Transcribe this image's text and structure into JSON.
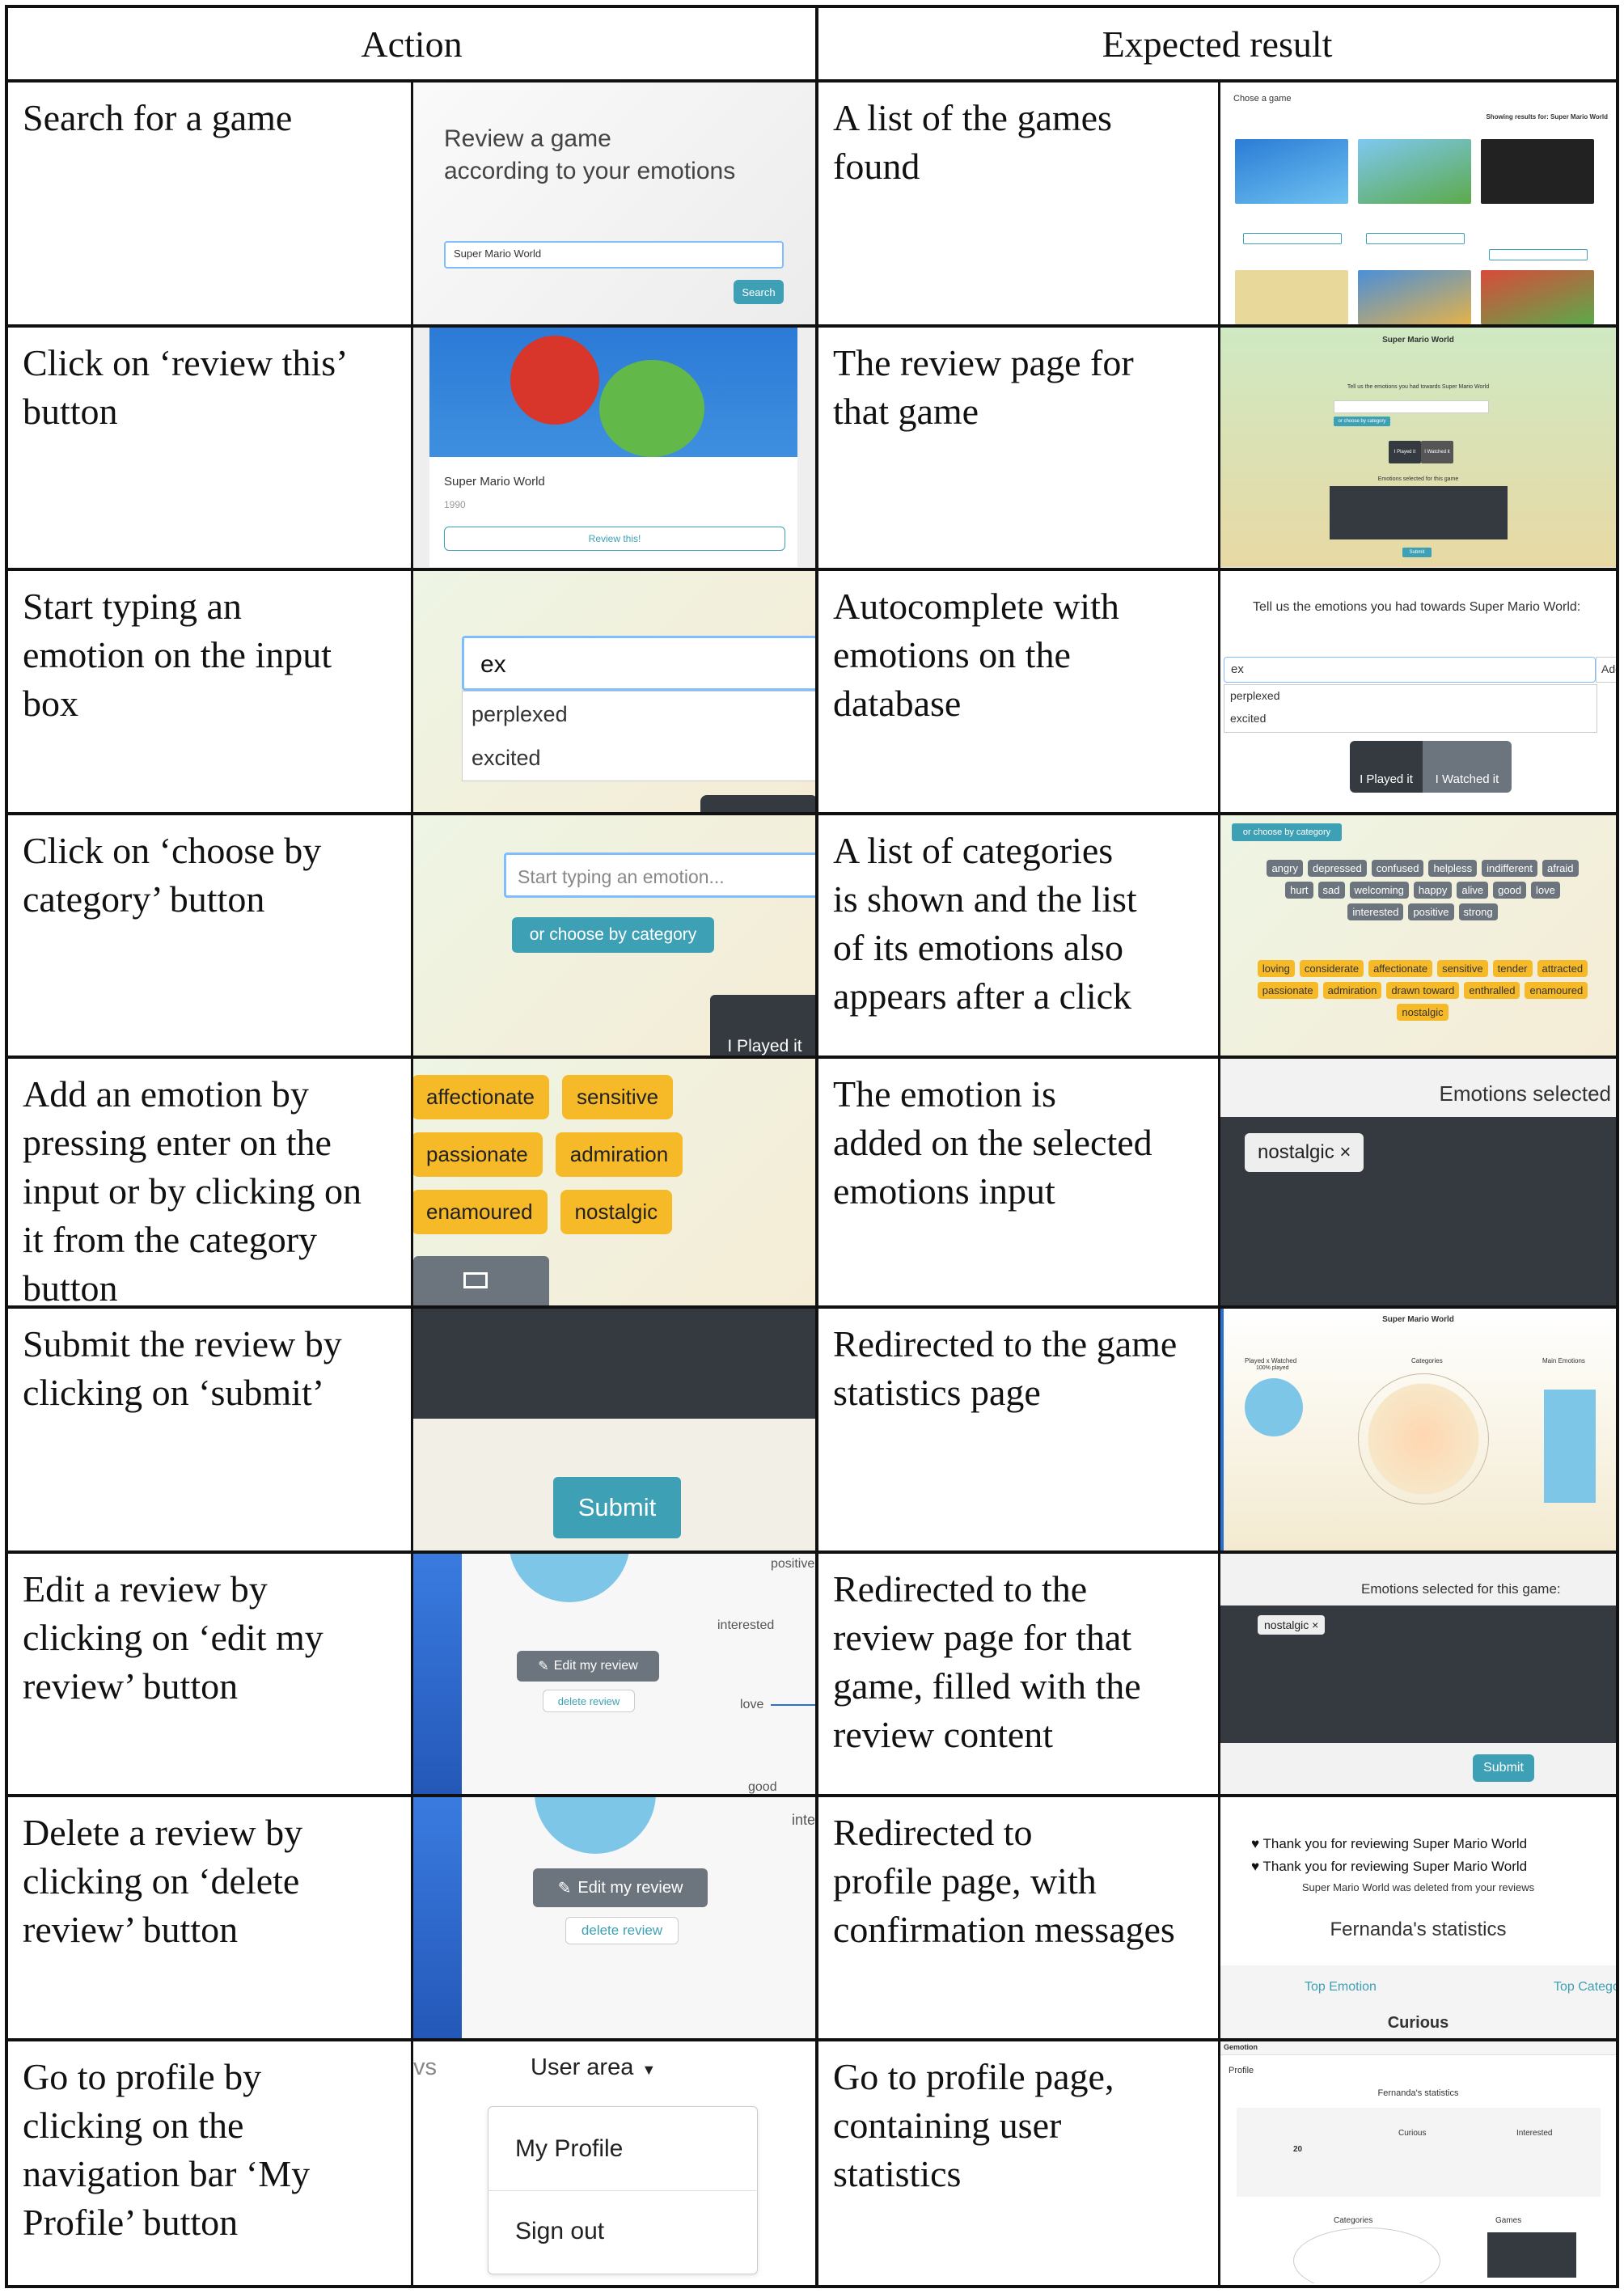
{
  "headers": {
    "action": "Action",
    "expected": "Expected result"
  },
  "rows": [
    {
      "action": "Search for a game",
      "expected": "A list of the games\nfound"
    },
    {
      "action": "Click on ‘review this’\nbutton",
      "expected": "The review page for\nthat game"
    },
    {
      "action": "Start typing an\nemotion on the input\nbox",
      "expected": "Autocomplete with\nemotions on the\ndatabase"
    },
    {
      "action": "Click on ‘choose by\ncategory’ button",
      "expected": "A list of categories\nis shown and the list\nof its emotions also\nappears after a click"
    },
    {
      "action": "Add an emotion by\npressing enter on the\ninput or by clicking on\nit from the category\nbutton",
      "expected": "The emotion is\nadded on the selected\nemotions input"
    },
    {
      "action": "Submit the review by\nclicking on ‘submit’",
      "expected": "Redirected to the game\nstatistics page"
    },
    {
      "action": "Edit a review by\nclicking on ‘edit my\nreview’ button",
      "expected": "Redirected to the\nreview page for that\ngame, filled with the\nreview content"
    },
    {
      "action": "Delete a review by\nclicking on ‘delete\nreview’ button",
      "expected": "Redirected to\nprofile page, with\nconfirmation messages"
    },
    {
      "action": "Go to profile by\nclicking on the\nnavigation bar ‘My\nProfile’ button",
      "expected": "Go to profile page,\ncontaining user\nstatistics"
    }
  ],
  "shots": {
    "r1a": {
      "heading": "Review a game\naccording to your emotions",
      "input": "Super Mario World",
      "button": "Search"
    },
    "r1e": {
      "top": "Chose a game",
      "showing": "Showing results for: Super Mario World"
    },
    "r2a": {
      "title": "Super Mario World",
      "year": "1990",
      "button": "Review this!"
    },
    "r2e": {
      "title": "Super Mario World",
      "prompt": "Tell us the emotions you had towards Super Mario World",
      "chip": "or choose by category",
      "played": "I Played it",
      "watched": "I Watched it",
      "selected": "Emotions selected for this game",
      "submit": "Submit"
    },
    "r3a": {
      "typed": "ex",
      "opt1": "perplexed",
      "opt2": "excited"
    },
    "r3e": {
      "prompt": "Tell us the emotions you had towards Super Mario World:",
      "typed": "ex",
      "opt1": "perplexed",
      "opt2": "excited",
      "add": "Add",
      "played": "I Played it",
      "watched": "I Watched it"
    },
    "r4a": {
      "placeholder": "Start typing an emotion...",
      "button": "or choose by category",
      "played": "I Played it"
    },
    "r4e": {
      "button": "or choose by category",
      "grey": [
        "angry",
        "depressed",
        "confused",
        "helpless",
        "indifferent",
        "afraid",
        "hurt",
        "sad",
        "welcoming",
        "happy",
        "alive",
        "good",
        "love",
        "interested",
        "positive",
        "strong"
      ],
      "yellow": [
        "loving",
        "considerate",
        "affectionate",
        "sensitive",
        "tender",
        "attracted",
        "passionate",
        "admiration",
        "drawn toward",
        "enthralled",
        "enamoured",
        "nostalgic"
      ]
    },
    "r5a": {
      "tags": [
        "affectionate",
        "sensitive",
        "passionate",
        "admiration",
        "enamoured",
        "nostalgic"
      ]
    },
    "r5e": {
      "title": "Emotions selected",
      "tag": "nostalgic ×"
    },
    "r6a": {
      "button": "Submit"
    },
    "r6e": {
      "title": "Super Mario World",
      "pw": "Played x Watched",
      "pct": "100% played",
      "cats": "Categories",
      "main": "Main Emotions"
    },
    "r7a": {
      "edit": "Edit my review",
      "delete": "delete review",
      "l1": "positive",
      "l2": "interested",
      "l3": "love",
      "l4": "good"
    },
    "r7e": {
      "title": "Emotions selected for this game:",
      "tag": "nostalgic ×",
      "submit": "Submit"
    },
    "r8a": {
      "edit": "Edit my review",
      "delete": "delete review",
      "l1": "inte"
    },
    "r8e": {
      "m1": "Thank you for reviewing Super Mario World",
      "m2": "Thank you for reviewing Super Mario World",
      "m3": "Super Mario World was deleted from your reviews",
      "stats": "Fernanda's statistics",
      "top": "Top Emotion",
      "topcat": "Top Catego",
      "curious": "Curious"
    },
    "r9a": {
      "frag": "vs",
      "user": "User area",
      "profile": "My Profile",
      "signout": "Sign out"
    },
    "r9e": {
      "brand": "Gemotion",
      "profile": "Profile",
      "stats": "Fernanda's statistics",
      "num": "20",
      "curious": "Curious",
      "interested": "Interested",
      "cats": "Categories",
      "games": "Games"
    }
  }
}
